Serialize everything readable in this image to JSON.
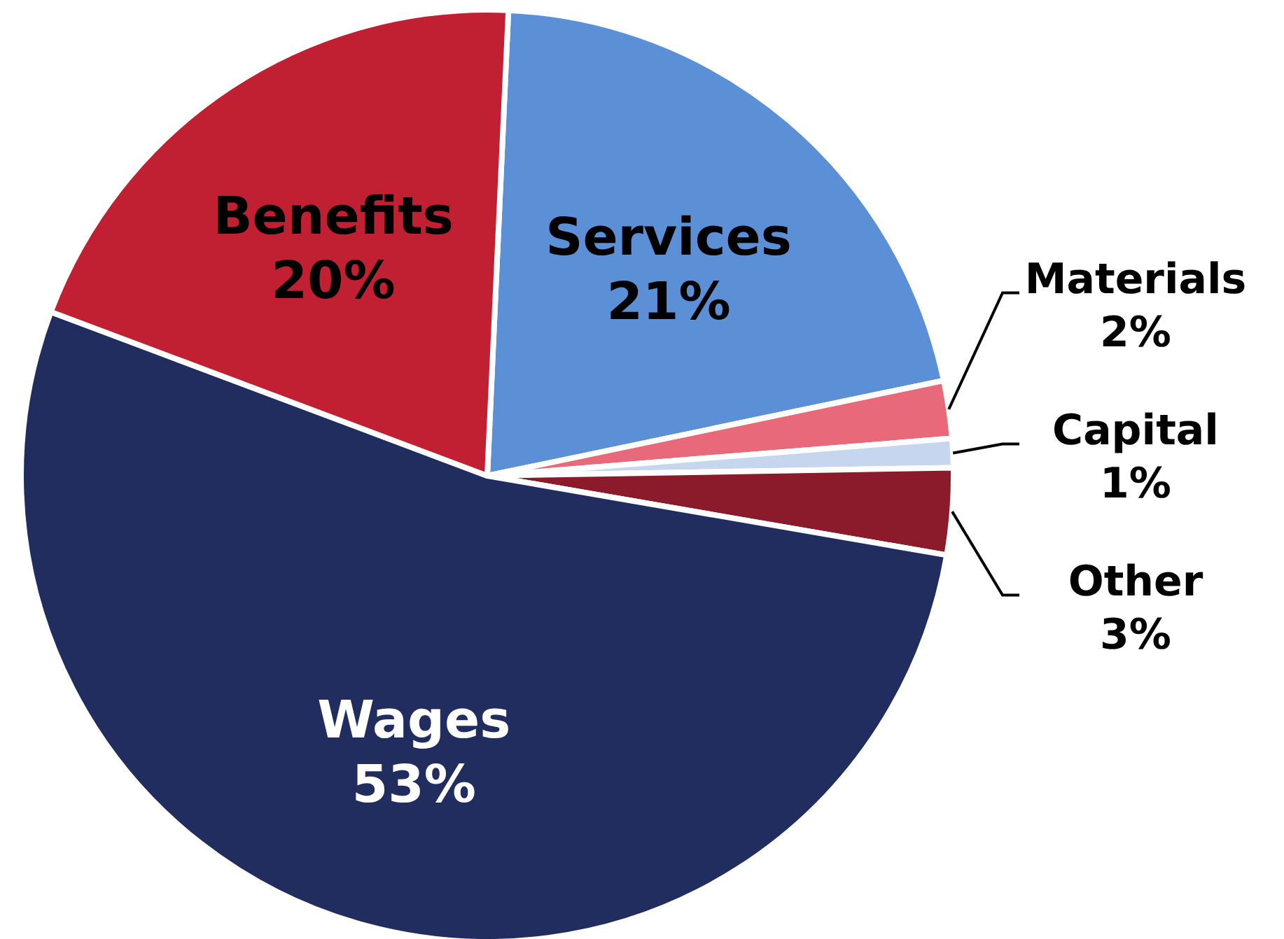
{
  "chart_data": {
    "type": "pie",
    "categories": [
      "Services",
      "Materials",
      "Capital",
      "Other",
      "Wages",
      "Benefits"
    ],
    "values": [
      21,
      2,
      1,
      3,
      53,
      20
    ],
    "value_labels": [
      "21%",
      "2%",
      "1%",
      "3%",
      "53%",
      "20%"
    ],
    "colors": [
      "#5b8fd6",
      "#e8697a",
      "#c5d6ee",
      "#8b1a2a",
      "#212d5e",
      "#c02032"
    ]
  }
}
